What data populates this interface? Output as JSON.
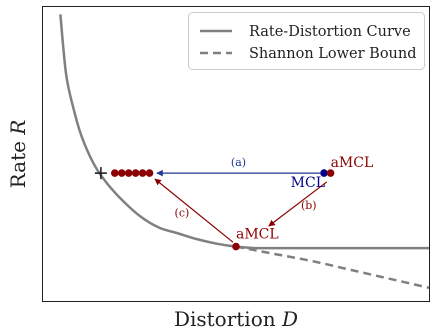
{
  "chart_data": {
    "type": "line",
    "xlabel": "Distortion D",
    "ylabel": "Rate R",
    "xlabel_parts": {
      "text": "Distortion",
      "symbol": "D"
    },
    "ylabel_parts": {
      "text": "Rate",
      "symbol": "R"
    },
    "grid": false,
    "ticks": false,
    "legend_position": "top-right",
    "series": [
      {
        "name": "Rate-Distortion Curve",
        "line_style": "solid",
        "color": "#808080",
        "x": [
          0.045,
          0.06,
          0.08,
          0.1,
          0.13,
          0.16,
          0.2,
          0.25,
          0.3,
          0.35,
          0.4,
          0.45,
          0.5,
          0.55,
          0.6,
          0.65,
          0.7,
          0.8,
          0.9,
          1.0
        ],
        "y": [
          0.975,
          0.77,
          0.65,
          0.56,
          0.47,
          0.41,
          0.35,
          0.29,
          0.25,
          0.23,
          0.21,
          0.195,
          0.185,
          0.18,
          0.18,
          0.18,
          0.18,
          0.18,
          0.18,
          0.18
        ]
      },
      {
        "name": "Shannon Lower Bound",
        "line_style": "dashed",
        "color": "#808080",
        "x": [
          0.5,
          0.6,
          0.7,
          0.8,
          0.9,
          1.0
        ],
        "y": [
          0.185,
          0.16,
          0.135,
          0.105,
          0.075,
          0.045
        ]
      }
    ],
    "points": [
      {
        "label": "",
        "marker": "plus",
        "color": "#222222",
        "x": 0.15,
        "y": 0.435
      },
      {
        "label": "",
        "marker": "dot",
        "color": "#8b0000",
        "x": 0.186,
        "y": 0.435
      },
      {
        "label": "",
        "marker": "dot",
        "color": "#8b0000",
        "x": 0.204,
        "y": 0.435
      },
      {
        "label": "",
        "marker": "dot",
        "color": "#8b0000",
        "x": 0.222,
        "y": 0.435
      },
      {
        "label": "",
        "marker": "dot",
        "color": "#8b0000",
        "x": 0.24,
        "y": 0.435
      },
      {
        "label": "",
        "marker": "dot",
        "color": "#8b0000",
        "x": 0.258,
        "y": 0.435
      },
      {
        "label": "",
        "marker": "dot",
        "color": "#8b0000",
        "x": 0.276,
        "y": 0.435
      },
      {
        "label": "MCL",
        "marker": "dot",
        "color": "#00008b",
        "x": 0.728,
        "y": 0.435
      },
      {
        "label": "aMCL",
        "marker": "dot",
        "color": "#8b0000",
        "x": 0.745,
        "y": 0.435
      },
      {
        "label": "aMCL",
        "marker": "dot",
        "color": "#8b0000",
        "x": 0.5,
        "y": 0.185
      }
    ],
    "arrows": [
      {
        "label": "(a)",
        "color": "#1f3a93",
        "from": [
          0.718,
          0.435
        ],
        "to": [
          0.295,
          0.435
        ]
      },
      {
        "label": "(b)",
        "color": "#8b0000",
        "from": [
          0.735,
          0.405
        ],
        "to": [
          0.585,
          0.255
        ]
      },
      {
        "label": "(c)",
        "color": "#8b0000",
        "from": [
          0.492,
          0.2
        ],
        "to": [
          0.29,
          0.415
        ]
      }
    ]
  }
}
